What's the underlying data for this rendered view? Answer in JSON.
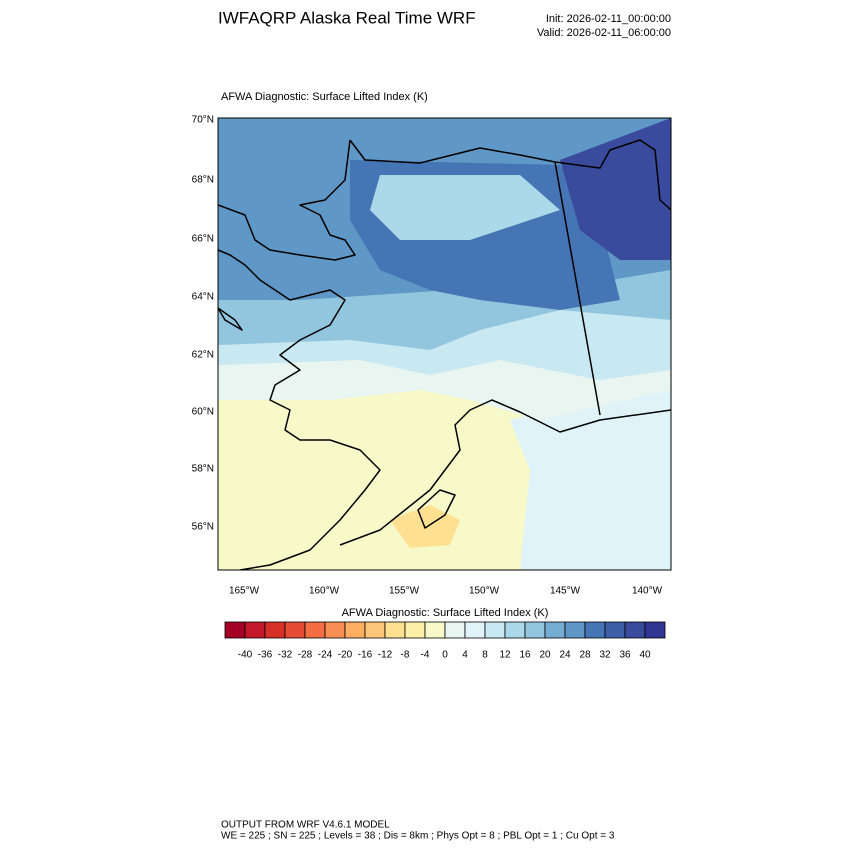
{
  "header": {
    "title": "IWFAQRP Alaska Real Time WRF",
    "init": "Init: 2026-02-11_00:00:00",
    "valid": "Valid: 2026-02-11_06:00:00"
  },
  "map": {
    "title": "AFWA Diagnostic: Surface Lifted Index   (K)",
    "lat_labels": [
      "70°N",
      "68°N",
      "66°N",
      "64°N",
      "62°N",
      "60°N",
      "58°N",
      "56°N"
    ],
    "lon_labels": [
      "165°W",
      "160°W",
      "155°W",
      "150°W",
      "145°W",
      "140°W"
    ]
  },
  "colorbar": {
    "title": "AFWA Diagnostic: Surface Lifted Index  (K)",
    "ticks": [
      -40,
      -36,
      -32,
      -28,
      -24,
      -20,
      -16,
      -12,
      -8,
      -4,
      0,
      4,
      8,
      12,
      16,
      20,
      24,
      28,
      32,
      36,
      40
    ],
    "colors": [
      "#a50026",
      "#c2182a",
      "#d73027",
      "#e54b36",
      "#f46d43",
      "#f98e52",
      "#fdae61",
      "#fec678",
      "#fee090",
      "#fef0a8",
      "#f7f9c8",
      "#e8f5f0",
      "#e0f3f8",
      "#c8e8f2",
      "#abd9e9",
      "#92c5de",
      "#74add1",
      "#5f97c6",
      "#4575b4",
      "#3f5ea8",
      "#3a4a9c",
      "#313695"
    ]
  },
  "footer": {
    "lines": [
      "OUTPUT FROM WRF V4.6.1 MODEL",
      "WE = 225 ; SN = 225 ; Levels = 38 ; Dis = 8km ; Phys Opt = 8 ; PBL Opt = 1 ; Cu Opt = 3"
    ]
  }
}
